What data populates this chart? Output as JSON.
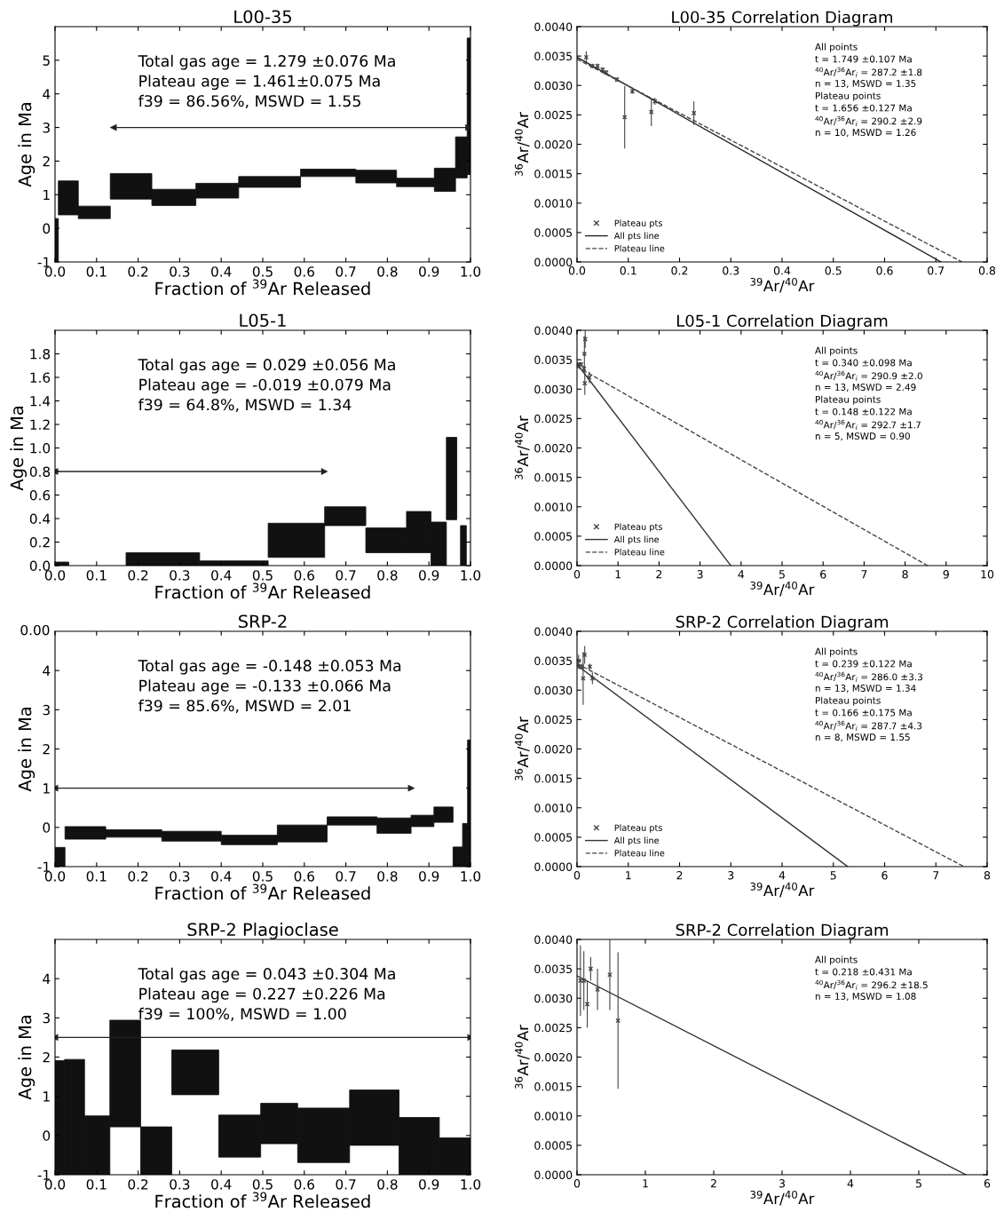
{
  "chart_data": [
    {
      "type": "histogram",
      "title": "L00-35",
      "xlabel": "Fraction of $^{39}$Ar Released",
      "ylabel": "Age in Ma",
      "color": "#111111",
      "bins": [
        0.0,
        0.008,
        0.056,
        0.133,
        0.233,
        0.339,
        0.442,
        0.591,
        0.724,
        0.822,
        0.913,
        0.964,
        0.992,
        1.0
      ],
      "base": [
        -1,
        0.4,
        0.29,
        0.87,
        0.68,
        0.9,
        1.22,
        1.54,
        1.35,
        1.24,
        1.1,
        1.5,
        1.6
      ],
      "values": [
        1.29,
        1.01,
        0.37,
        0.76,
        0.48,
        0.44,
        0.32,
        0.22,
        0.38,
        0.25,
        0.69,
        1.22,
        4.06
      ],
      "series": [
        {
          "type": "line",
          "marker": "triangle",
          "color": "#222222",
          "x": [
            0.141,
            0.995
          ],
          "values": [
            3,
            3
          ]
        }
      ],
      "xlim": [
        0,
        1
      ],
      "ylim": [
        -1,
        6
      ],
      "xticks": [
        {
          "value": 0,
          "label": "0.0"
        },
        {
          "value": 0.1,
          "label": "0.1"
        },
        {
          "value": 0.2,
          "label": "0.2"
        },
        {
          "value": 0.3,
          "label": "0.3"
        },
        {
          "value": 0.4,
          "label": "0.4"
        },
        {
          "value": 0.5,
          "label": "0.5"
        },
        {
          "value": 0.6,
          "label": "0.6"
        },
        {
          "value": 0.7,
          "label": "0.7"
        },
        {
          "value": 0.8,
          "label": "0.8"
        },
        {
          "value": 0.9,
          "label": "0.9"
        },
        {
          "value": 1,
          "label": "1.0"
        }
      ],
      "yticks": [
        -1,
        0,
        1,
        2,
        3,
        4,
        5
      ],
      "annotations": [
        "Total gas age = 1.279 ±0.076 Ma",
        "Plateau age = 1.461±0.075 Ma",
        "f39 = 86.56%, MSWD = 1.55"
      ]
    },
    {
      "type": "scatter",
      "title": "L00-35 Correlation Diagram",
      "xlabel": "$^{39}$Ar/$^{40}$Ar",
      "ylabel": "$^{36}$Ar/$^{40}$Ar",
      "series": [
        {
          "name": "Plateau pts",
          "type": "scatter",
          "marker": "cross",
          "color": "#444444",
          "x": [
            0.018,
            0.03,
            0.04,
            0.05,
            0.057,
            0.078,
            0.093,
            0.108,
            0.145,
            0.152,
            0.228
          ],
          "values": [
            0.00348,
            0.00333,
            0.00333,
            0.00327,
            0.00322,
            0.0031,
            0.00246,
            0.0029,
            0.00255,
            0.00273,
            0.00253
          ],
          "errors": [
            0.0001,
            4e-05,
            4e-05,
            4e-05,
            4e-05,
            4e-05,
            0.00053,
            4e-05,
            0.00024,
            6e-05,
            0.0002
          ]
        },
        {
          "name": "All pts line",
          "type": "line",
          "line_style": "solid",
          "color": "#222222",
          "x": [
            0,
            0.71
          ],
          "values": [
            0.00348,
            0
          ]
        },
        {
          "name": "Plateau line",
          "type": "line",
          "line_style": "dashed",
          "color": "#444444",
          "x": [
            0,
            0.751
          ],
          "values": [
            0.00345,
            0
          ]
        }
      ],
      "legend": "bottom left",
      "xlim": [
        0,
        0.8
      ],
      "ylim": [
        0,
        0.004
      ],
      "xticks": [
        {
          "value": 0,
          "label": "0.0"
        },
        {
          "value": 0.1,
          "label": "0.1"
        },
        {
          "value": 0.2,
          "label": "0.2"
        },
        {
          "value": 0.3,
          "label": "0.3"
        },
        {
          "value": 0.4,
          "label": "0.4"
        },
        {
          "value": 0.5,
          "label": "0.5"
        },
        {
          "value": 0.6,
          "label": "0.6"
        },
        {
          "value": 0.7,
          "label": "0.7"
        },
        {
          "value": 0.8,
          "label": "0.8"
        }
      ],
      "yticks": [
        {
          "value": 0,
          "label": "0.0000"
        },
        {
          "value": 0.0005,
          "label": "0.0005"
        },
        {
          "value": 0.001,
          "label": "0.0010"
        },
        {
          "value": 0.0015,
          "label": "0.0015"
        },
        {
          "value": 0.002,
          "label": "0.0020"
        },
        {
          "value": 0.0025,
          "label": "0.0025"
        },
        {
          "value": 0.003,
          "label": "0.0030"
        },
        {
          "value": 0.0035,
          "label": "0.0035"
        },
        {
          "value": 0.004,
          "label": "0.0040"
        }
      ],
      "annotations": [
        "All points",
        "t = 1.749 ±0.107 Ma",
        "$^{40}$Ar/$^{36}$Ar$_{i}$ = 287.2 ±1.8",
        "n = 13, MSWD = 1.35",
        "Plateau points",
        "t = 1.656 ±0.127 Ma",
        "$^{40}$Ar/$^{36}$Ar$_{i}$ = 290.2 ±2.9",
        "n = 10, MSWD = 1.26"
      ]
    },
    {
      "type": "histogram",
      "title": "L05-1",
      "xlabel": "Fraction of $^{39}$Ar Released",
      "ylabel": "Age in Ma",
      "color": "#111111",
      "bins": [
        0.0,
        0.033,
        0.171,
        0.348,
        0.513,
        0.649,
        0.748,
        0.846,
        0.905,
        0.942,
        0.967,
        0.976,
        0.99
      ],
      "base": [
        0,
        null,
        0,
        0,
        0.07,
        0.34,
        0.11,
        0.11,
        0,
        0.39,
        null,
        0
      ],
      "values": [
        0.03,
        null,
        0.11,
        0.04,
        0.29,
        0.16,
        0.21,
        0.35,
        0.37,
        0.7,
        null,
        0.34
      ],
      "series": [
        {
          "type": "line",
          "marker": "triangle",
          "color": "#222222",
          "x": [
            0.0,
            0.648
          ],
          "values": [
            0.8,
            0.8
          ]
        }
      ],
      "xlim": [
        0,
        1
      ],
      "ylim": [
        0,
        2
      ],
      "xticks": [
        {
          "value": 0,
          "label": "0.0"
        },
        {
          "value": 0.1,
          "label": "0.1"
        },
        {
          "value": 0.2,
          "label": "0.2"
        },
        {
          "value": 0.3,
          "label": "0.3"
        },
        {
          "value": 0.4,
          "label": "0.4"
        },
        {
          "value": 0.5,
          "label": "0.5"
        },
        {
          "value": 0.6,
          "label": "0.6"
        },
        {
          "value": 0.7,
          "label": "0.7"
        },
        {
          "value": 0.8,
          "label": "0.8"
        },
        {
          "value": 0.9,
          "label": "0.9"
        },
        {
          "value": 1,
          "label": "1.0"
        }
      ],
      "yticks": [
        {
          "value": 0,
          "label": "0.0"
        },
        {
          "value": 0.2,
          "label": "0.2"
        },
        {
          "value": 0.4,
          "label": "0.4"
        },
        {
          "value": 0.6,
          "label": "0.6"
        },
        {
          "value": 0.8,
          "label": "0.8"
        },
        {
          "value": 1.0,
          "label": "1.0"
        },
        {
          "value": 1.2,
          "label": "1.2"
        },
        {
          "value": 1.4,
          "label": "1.4"
        },
        {
          "value": 1.6,
          "label": "1.6"
        },
        {
          "value": 1.8,
          "label": "1.8"
        }
      ],
      "annotations": [
        "Total gas age = 0.029 ±0.056 Ma",
        "Plateau age = -0.019 ±0.079 Ma",
        "f39 = 64.8%, MSWD = 1.34"
      ]
    },
    {
      "type": "scatter",
      "title": "L05-1 Correlation Diagram",
      "xlabel": "$^{39}$Ar/$^{40}$Ar",
      "ylabel": "$^{36}$Ar/$^{40}$Ar",
      "series": [
        {
          "name": "Plateau pts",
          "type": "scatter",
          "marker": "cross",
          "color": "#444444",
          "x": [
            0.05,
            0.1,
            0.17,
            0.18,
            0.2,
            0.19,
            0.3
          ],
          "values": [
            0.00342,
            0.00342,
            0.00335,
            0.0036,
            0.00385,
            0.0031,
            0.0032
          ],
          "errors": [
            4e-05,
            4e-05,
            5e-05,
            0.0003,
            0.00015,
            0.0002,
            0.0001
          ]
        },
        {
          "name": "All pts line",
          "type": "line",
          "line_style": "solid",
          "color": "#333333",
          "x": [
            0,
            3.75
          ],
          "values": [
            0.00343,
            0
          ]
        },
        {
          "name": "Plateau line",
          "type": "line",
          "line_style": "dashed",
          "color": "#444444",
          "x": [
            0,
            8.55
          ],
          "values": [
            0.00338,
            0
          ]
        }
      ],
      "legend": "bottom left",
      "xlim": [
        0,
        10
      ],
      "ylim": [
        0,
        0.004
      ],
      "xticks": [
        0,
        1,
        2,
        3,
        4,
        5,
        6,
        7,
        8,
        9,
        10
      ],
      "yticks": [
        {
          "value": 0,
          "label": "0.0000"
        },
        {
          "value": 0.0005,
          "label": "0.0005"
        },
        {
          "value": 0.001,
          "label": "0.0010"
        },
        {
          "value": 0.0015,
          "label": "0.0015"
        },
        {
          "value": 0.002,
          "label": "0.0020"
        },
        {
          "value": 0.0025,
          "label": "0.0025"
        },
        {
          "value": 0.003,
          "label": "0.0030"
        },
        {
          "value": 0.0035,
          "label": "0.0035"
        },
        {
          "value": 0.004,
          "label": "0.0040"
        }
      ],
      "annotations": [
        "All points",
        "t = 0.340 ±0.098 Ma",
        "$^{40}$Ar/$^{36}$Ar$_{i}$ = 290.9 ±2.0",
        "n = 13, MSWD = 2.49",
        "Plateau points",
        "t = 0.148 ±0.122 Ma",
        "$^{40}$Ar/$^{36}$Ar$_{i}$ = 292.7 ±1.7",
        "n = 5, MSWD = 0.90"
      ]
    },
    {
      "type": "histogram",
      "title": "SRP-2",
      "xlabel": "Fraction of $^{39}$Ar Released",
      "ylabel": "Age in Ma",
      "color": "#111111",
      "bins": [
        0.0,
        0.024,
        0.122,
        0.257,
        0.4,
        0.535,
        0.655,
        0.775,
        0.857,
        0.912,
        0.958,
        0.981,
        0.993,
        1.0
      ],
      "base": [
        -1,
        -0.3,
        -0.25,
        -0.35,
        -0.44,
        -0.37,
        0.06,
        -0.15,
        0.02,
        0.13,
        -1,
        -1,
        -1
      ],
      "values": [
        0.49,
        0.32,
        0.19,
        0.25,
        0.24,
        0.43,
        0.21,
        0.39,
        0.29,
        0.39,
        0.5,
        1.1,
        3.23
      ],
      "series": [
        {
          "type": "line",
          "marker": "triangle",
          "color": "#222222",
          "x": [
            0.0,
            0.857
          ],
          "values": [
            1,
            1
          ]
        }
      ],
      "xlim": [
        0,
        1
      ],
      "ylim": [
        -1,
        5
      ],
      "xticks": [
        {
          "value": 0,
          "label": "0.0"
        },
        {
          "value": 0.1,
          "label": "0.1"
        },
        {
          "value": 0.2,
          "label": "0.2"
        },
        {
          "value": 0.3,
          "label": "0.3"
        },
        {
          "value": 0.4,
          "label": "0.4"
        },
        {
          "value": 0.5,
          "label": "0.5"
        },
        {
          "value": 0.6,
          "label": "0.6"
        },
        {
          "value": 0.7,
          "label": "0.7"
        },
        {
          "value": 0.8,
          "label": "0.8"
        },
        {
          "value": 0.9,
          "label": "0.9"
        },
        {
          "value": 1,
          "label": "1.0"
        }
      ],
      "yticks": [
        -1,
        0,
        1,
        2,
        3,
        4
      ],
      "annotations": [
        "Total gas age = -0.148 ±0.053 Ma",
        "Plateau age = -0.133 ±0.066 Ma",
        "f39 = 85.6%, MSWD = 2.01",
        "0.00"
      ]
    },
    {
      "type": "scatter",
      "title": "SRP-2 Correlation Diagram",
      "xlabel": "$^{39}$Ar/$^{40}$Ar",
      "ylabel": "$^{36}$Ar/$^{40}$Ar",
      "series": [
        {
          "name": "Plateau pts",
          "type": "scatter",
          "marker": "cross",
          "color": "#444444",
          "x": [
            0.03,
            0.05,
            0.1,
            0.12,
            0.15,
            0.25,
            0.3
          ],
          "values": [
            0.0035,
            0.0034,
            0.0034,
            0.0032,
            0.0036,
            0.0034,
            0.0032
          ],
          "errors": [
            0.0001,
            5e-05,
            5e-05,
            0.00045,
            0.00015,
            5e-05,
            0.0001
          ]
        },
        {
          "name": "All pts line",
          "type": "line",
          "line_style": "solid",
          "color": "#333333",
          "x": [
            0,
            5.28
          ],
          "values": [
            0.00342,
            0
          ]
        },
        {
          "name": "Plateau line",
          "type": "line",
          "line_style": "dashed",
          "color": "#444444",
          "x": [
            0,
            7.55
          ],
          "values": [
            0.00345,
            0
          ]
        }
      ],
      "legend": "bottom left",
      "xlim": [
        0,
        8
      ],
      "ylim": [
        0,
        0.004
      ],
      "xticks": [
        0,
        1,
        2,
        3,
        4,
        5,
        6,
        7,
        8
      ],
      "yticks": [
        {
          "value": 0,
          "label": "0.0000"
        },
        {
          "value": 0.0005,
          "label": "0.0005"
        },
        {
          "value": 0.001,
          "label": "0.0010"
        },
        {
          "value": 0.0015,
          "label": "0.0015"
        },
        {
          "value": 0.002,
          "label": "0.0020"
        },
        {
          "value": 0.0025,
          "label": "0.0025"
        },
        {
          "value": 0.003,
          "label": "0.0030"
        },
        {
          "value": 0.0035,
          "label": "0.0035"
        },
        {
          "value": 0.004,
          "label": "0.0040"
        }
      ],
      "annotations": [
        "All points",
        "t = 0.239 ±0.122 Ma",
        "$^{40}$Ar/$^{36}$Ar$_{i}$ = 286.0 ±3.3",
        "n = 13, MSWD = 1.34",
        "Plateau points",
        "t = 0.166 ±0.175 Ma",
        "$^{40}$Ar/$^{36}$Ar$_{i}$ = 287.7 ±4.3",
        "n = 8, MSWD = 1.55"
      ]
    },
    {
      "type": "histogram",
      "title": "SRP-2 Plagioclase",
      "xlabel": "Fraction of $^{39}$Ar Released",
      "ylabel": "Age in Ma",
      "color": "#111111",
      "bins": [
        0.0,
        0.023,
        0.071,
        0.132,
        0.206,
        0.281,
        0.394,
        0.495,
        0.584,
        0.709,
        0.828,
        0.925,
        1.0
      ],
      "base": [
        -1,
        -1,
        -1,
        0.22,
        -1,
        1.04,
        -0.55,
        -0.21,
        -0.69,
        -0.25,
        -1,
        -1
      ],
      "values": [
        2.91,
        2.94,
        1.5,
        2.72,
        1.22,
        1.14,
        1.07,
        1.03,
        1.39,
        1.41,
        1.46,
        0.94
      ],
      "series": [
        {
          "type": "line",
          "marker": "triangle",
          "color": "#222222",
          "x": [
            0.0,
            1.0
          ],
          "values": [
            2.5,
            2.5
          ]
        }
      ],
      "xlim": [
        0,
        1
      ],
      "ylim": [
        -1,
        5
      ],
      "xticks": [
        {
          "value": 0,
          "label": "0.0"
        },
        {
          "value": 0.1,
          "label": "0.1"
        },
        {
          "value": 0.2,
          "label": "0.2"
        },
        {
          "value": 0.3,
          "label": "0.3"
        },
        {
          "value": 0.4,
          "label": "0.4"
        },
        {
          "value": 0.5,
          "label": "0.5"
        },
        {
          "value": 0.6,
          "label": "0.6"
        },
        {
          "value": 0.7,
          "label": "0.7"
        },
        {
          "value": 0.8,
          "label": "0.8"
        },
        {
          "value": 0.9,
          "label": "0.9"
        },
        {
          "value": 1,
          "label": "1.0"
        }
      ],
      "yticks": [
        -1,
        0,
        1,
        2,
        3,
        4
      ],
      "annotations": [
        "Total gas age = 0.043 ±0.304 Ma",
        "Plateau age = 0.227 ±0.226 Ma",
        "f39 = 100%, MSWD = 1.00"
      ]
    },
    {
      "type": "scatter",
      "title": "SRP-2 Correlation Diagram",
      "xlabel": "$^{39}$Ar/$^{40}$Ar",
      "ylabel": "$^{36}$Ar/$^{40}$Ar",
      "series": [
        {
          "type": "scatter",
          "marker": "cross",
          "color": "#444444",
          "x": [
            0.05,
            0.1,
            0.15,
            0.2,
            0.3,
            0.48,
            0.6
          ],
          "values": [
            0.0033,
            0.0033,
            0.0029,
            0.0035,
            0.00315,
            0.0034,
            0.00262
          ],
          "errors": [
            0.0006,
            0.0005,
            0.0004,
            0.0002,
            0.00035,
            0.0006,
            0.00116
          ]
        },
        {
          "type": "line",
          "line_style": "solid",
          "color": "#333333",
          "x": [
            0,
            5.69
          ],
          "values": [
            0.00338,
            0
          ]
        }
      ],
      "xlim": [
        0,
        6
      ],
      "ylim": [
        0,
        0.004
      ],
      "xticks": [
        0,
        1,
        2,
        3,
        4,
        5,
        6
      ],
      "yticks": [
        {
          "value": 0,
          "label": "0.0000"
        },
        {
          "value": 0.0005,
          "label": "0.0005"
        },
        {
          "value": 0.001,
          "label": "0.0010"
        },
        {
          "value": 0.0015,
          "label": "0.0015"
        },
        {
          "value": 0.002,
          "label": "0.0020"
        },
        {
          "value": 0.0025,
          "label": "0.0025"
        },
        {
          "value": 0.003,
          "label": "0.0030"
        },
        {
          "value": 0.0035,
          "label": "0.0035"
        },
        {
          "value": 0.004,
          "label": "0.0040"
        }
      ],
      "annotations": [
        "All points",
        "t = 0.218 ±0.431 Ma",
        "$^{40}$Ar/$^{36}$Ar$_{i}$ = 296.2 ±18.5",
        "n = 13, MSWD = 1.08"
      ]
    }
  ]
}
